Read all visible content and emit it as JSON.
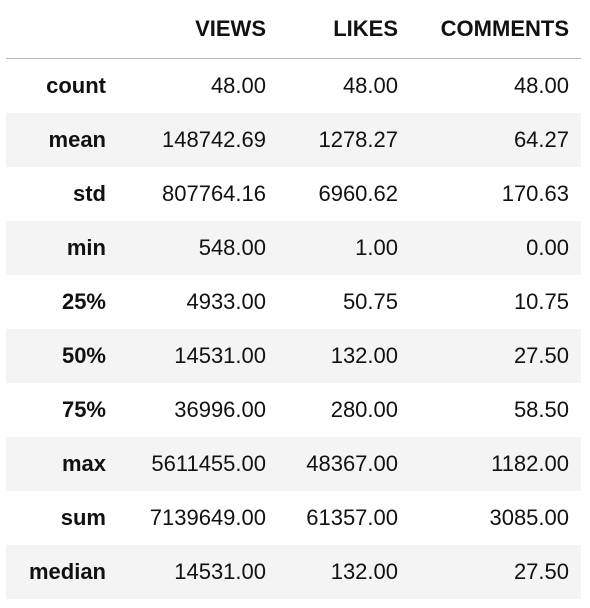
{
  "table": {
    "columns": [
      "",
      "VIEWS",
      "LIKES",
      "COMMENTS"
    ],
    "rows": [
      {
        "label": "count",
        "values": [
          "48.00",
          "48.00",
          "48.00"
        ]
      },
      {
        "label": "mean",
        "values": [
          "148742.69",
          "1278.27",
          "64.27"
        ]
      },
      {
        "label": "std",
        "values": [
          "807764.16",
          "6960.62",
          "170.63"
        ]
      },
      {
        "label": "min",
        "values": [
          "548.00",
          "1.00",
          "0.00"
        ]
      },
      {
        "label": "25%",
        "values": [
          "4933.00",
          "50.75",
          "10.75"
        ]
      },
      {
        "label": "50%",
        "values": [
          "14531.00",
          "132.00",
          "27.50"
        ]
      },
      {
        "label": "75%",
        "values": [
          "36996.00",
          "280.00",
          "58.50"
        ]
      },
      {
        "label": "max",
        "values": [
          "5611455.00",
          "48367.00",
          "1182.00"
        ]
      },
      {
        "label": "sum",
        "values": [
          "7139649.00",
          "61357.00",
          "3085.00"
        ]
      },
      {
        "label": "median",
        "values": [
          "14531.00",
          "132.00",
          "27.50"
        ]
      }
    ]
  }
}
